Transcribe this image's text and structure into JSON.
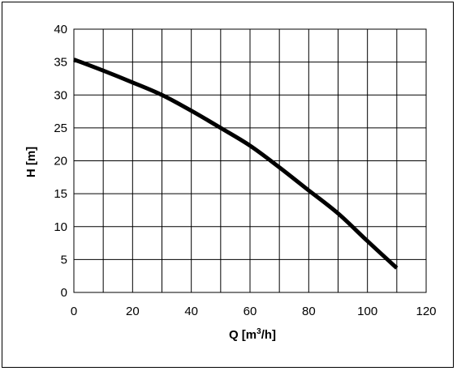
{
  "chart_data": {
    "type": "line",
    "title": "",
    "xlabel_main": "Q [m",
    "xlabel_sup": "3",
    "xlabel_tail": "/h]",
    "ylabel": "H [m]",
    "xlim": [
      0,
      120
    ],
    "ylim": [
      0,
      40
    ],
    "xticks": [
      0,
      20,
      40,
      60,
      80,
      100,
      120
    ],
    "yticks": [
      0,
      5,
      10,
      15,
      20,
      25,
      30,
      35,
      40
    ],
    "x_gridlines": [
      0,
      10,
      20,
      30,
      40,
      50,
      60,
      70,
      80,
      90,
      100,
      110,
      120
    ],
    "y_gridlines": [
      0,
      5,
      10,
      15,
      20,
      25,
      30,
      35,
      40
    ],
    "grid": true,
    "series": [
      {
        "color": "#000000",
        "x": [
          0,
          10,
          20,
          30,
          40,
          50,
          60,
          70,
          80,
          90,
          100,
          110
        ],
        "y": [
          35.4,
          33.7,
          31.9,
          30.0,
          27.6,
          25.0,
          22.3,
          19.0,
          15.5,
          12.0,
          7.8,
          3.7
        ]
      }
    ]
  }
}
